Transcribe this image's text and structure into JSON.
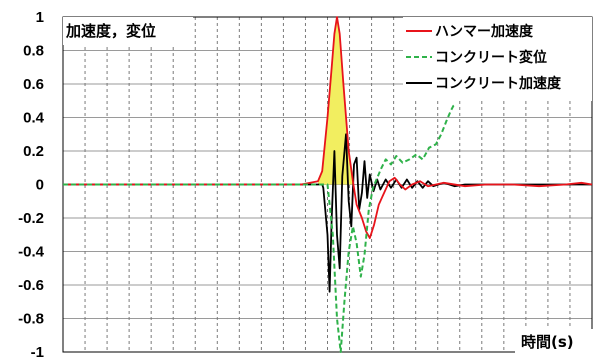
{
  "chart_data": {
    "type": "line",
    "title": "",
    "ylabel": "加速度，変位",
    "xlabel": "時間(s)",
    "ylim": [
      -1,
      1
    ],
    "yticks": [
      "1",
      "0.8",
      "0.6",
      "0.4",
      "0.2",
      "0",
      "-0.2",
      "-0.4",
      "-0.6",
      "-0.8",
      "-1"
    ],
    "x_unit_note": "x values are normalized time (0 = left edge, 1 = right edge of plot); axis has no printed tick labels",
    "grid": true,
    "legend_position": "top-right",
    "series": [
      {
        "name": "ハンマー加速度",
        "color": "#e8141b",
        "style": "solid",
        "fill": "#f2ee60",
        "points": [
          [
            0,
            0
          ],
          [
            0.45,
            0
          ],
          [
            0.482,
            0.02
          ],
          [
            0.49,
            0.08
          ],
          [
            0.5,
            0.4
          ],
          [
            0.508,
            0.7
          ],
          [
            0.513,
            0.9
          ],
          [
            0.518,
            1.0
          ],
          [
            0.523,
            0.9
          ],
          [
            0.53,
            0.6
          ],
          [
            0.54,
            0.2
          ],
          [
            0.548,
            0.02
          ],
          [
            0.555,
            -0.12
          ],
          [
            0.565,
            -0.2
          ],
          [
            0.573,
            -0.28
          ],
          [
            0.58,
            -0.32
          ],
          [
            0.588,
            -0.24
          ],
          [
            0.597,
            -0.12
          ],
          [
            0.607,
            -0.05
          ],
          [
            0.617,
            0.02
          ],
          [
            0.627,
            0.04
          ],
          [
            0.637,
            0.0
          ],
          [
            0.647,
            -0.03
          ],
          [
            0.66,
            0.0
          ],
          [
            0.675,
            0.02
          ],
          [
            0.69,
            -0.01
          ],
          [
            0.72,
            0.01
          ],
          [
            0.76,
            -0.01
          ],
          [
            0.8,
            0.0
          ],
          [
            0.85,
            0.0
          ],
          [
            0.9,
            -0.01
          ],
          [
            0.95,
            0.0
          ],
          [
            0.98,
            0.01
          ],
          [
            1,
            0
          ]
        ]
      },
      {
        "name": "コンクリート変位",
        "color": "#2fb24a",
        "style": "dashed",
        "points": [
          [
            0,
            0
          ],
          [
            0.5,
            0
          ],
          [
            0.51,
            -0.3
          ],
          [
            0.518,
            -0.8
          ],
          [
            0.525,
            -1.0
          ],
          [
            0.532,
            -0.7
          ],
          [
            0.54,
            -0.4
          ],
          [
            0.548,
            -0.25
          ],
          [
            0.555,
            -0.35
          ],
          [
            0.563,
            -0.55
          ],
          [
            0.57,
            -0.42
          ],
          [
            0.578,
            -0.15
          ],
          [
            0.586,
            -0.02
          ],
          [
            0.594,
            0.04
          ],
          [
            0.602,
            0.1
          ],
          [
            0.61,
            0.15
          ],
          [
            0.62,
            0.12
          ],
          [
            0.63,
            0.17
          ],
          [
            0.642,
            0.13
          ],
          [
            0.655,
            0.15
          ],
          [
            0.668,
            0.18
          ],
          [
            0.68,
            0.15
          ],
          [
            0.692,
            0.22
          ],
          [
            0.705,
            0.24
          ],
          [
            0.715,
            0.3
          ],
          [
            0.725,
            0.38
          ],
          [
            0.733,
            0.44
          ],
          [
            0.738,
            0.47
          ],
          [
            0.742,
            0.48
          ]
        ]
      },
      {
        "name": "コンクリート加速度",
        "color": "#000000",
        "style": "solid",
        "points": [
          [
            0,
            0
          ],
          [
            0.49,
            0
          ],
          [
            0.492,
            -0.02
          ],
          [
            0.5,
            -0.3
          ],
          [
            0.504,
            -0.64
          ],
          [
            0.508,
            -0.2
          ],
          [
            0.513,
            0.2
          ],
          [
            0.518,
            -0.3
          ],
          [
            0.523,
            -0.5
          ],
          [
            0.528,
            0.05
          ],
          [
            0.535,
            0.3
          ],
          [
            0.54,
            -0.1
          ],
          [
            0.545,
            -0.25
          ],
          [
            0.55,
            0.12
          ],
          [
            0.555,
            0.16
          ],
          [
            0.56,
            -0.15
          ],
          [
            0.565,
            -0.05
          ],
          [
            0.57,
            0.14
          ],
          [
            0.575,
            -0.08
          ],
          [
            0.58,
            0.06
          ],
          [
            0.587,
            -0.04
          ],
          [
            0.594,
            0.03
          ],
          [
            0.6,
            -0.03
          ],
          [
            0.61,
            0.03
          ],
          [
            0.62,
            -0.02
          ],
          [
            0.63,
            0.03
          ],
          [
            0.64,
            -0.02
          ],
          [
            0.65,
            0.03
          ],
          [
            0.66,
            -0.02
          ],
          [
            0.67,
            0.02
          ],
          [
            0.68,
            -0.02
          ],
          [
            0.69,
            0.02
          ],
          [
            0.7,
            -0.01
          ],
          [
            0.72,
            0.01
          ],
          [
            0.74,
            -0.01
          ],
          [
            0.76,
            0.0
          ],
          [
            0.8,
            0.0
          ],
          [
            0.9,
            0.0
          ],
          [
            1,
            0
          ]
        ]
      }
    ]
  }
}
